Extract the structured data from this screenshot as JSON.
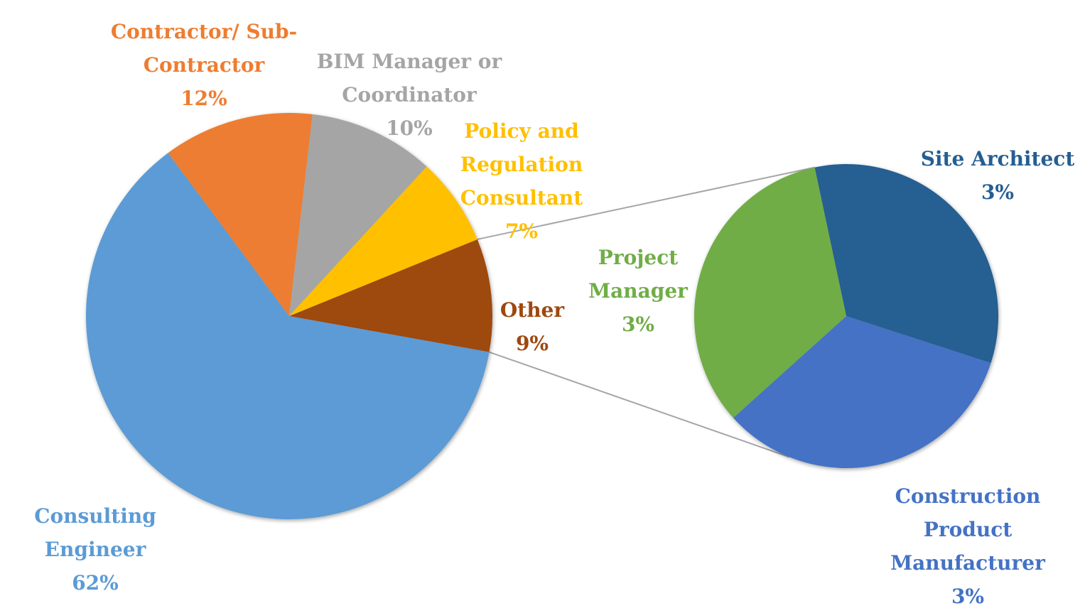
{
  "chart_data": {
    "type": "pie",
    "variant": "pie-of-pie",
    "legend": "none",
    "main_pie": {
      "slices": [
        {
          "label": "Consulting Engineer",
          "pct_label": "62%",
          "value": 62,
          "color": "#5B9BD5"
        },
        {
          "label": "Contractor/ Sub-Contractor",
          "pct_label": "12%",
          "value": 12,
          "color": "#ED7D31"
        },
        {
          "label": "BIM Manager or Coordinator",
          "pct_label": "10%",
          "value": 10,
          "color": "#A5A5A5"
        },
        {
          "label": "Policy and Regulation Consultant",
          "pct_label": "7%",
          "value": 7,
          "color": "#FFC000"
        },
        {
          "label": "Other",
          "pct_label": "9%",
          "value": 9,
          "color": "#9E480E"
        }
      ]
    },
    "secondary_pie": {
      "source": "Other",
      "slices": [
        {
          "label": "Site Architect",
          "pct_label": "3%",
          "value": 3,
          "color": "#255E91"
        },
        {
          "label": "Construction Product Manufacturer",
          "pct_label": "3%",
          "value": 3,
          "color": "#4472C4"
        },
        {
          "label": "Project Manager",
          "pct_label": "3%",
          "value": 3,
          "color": "#70AD47"
        }
      ]
    }
  }
}
